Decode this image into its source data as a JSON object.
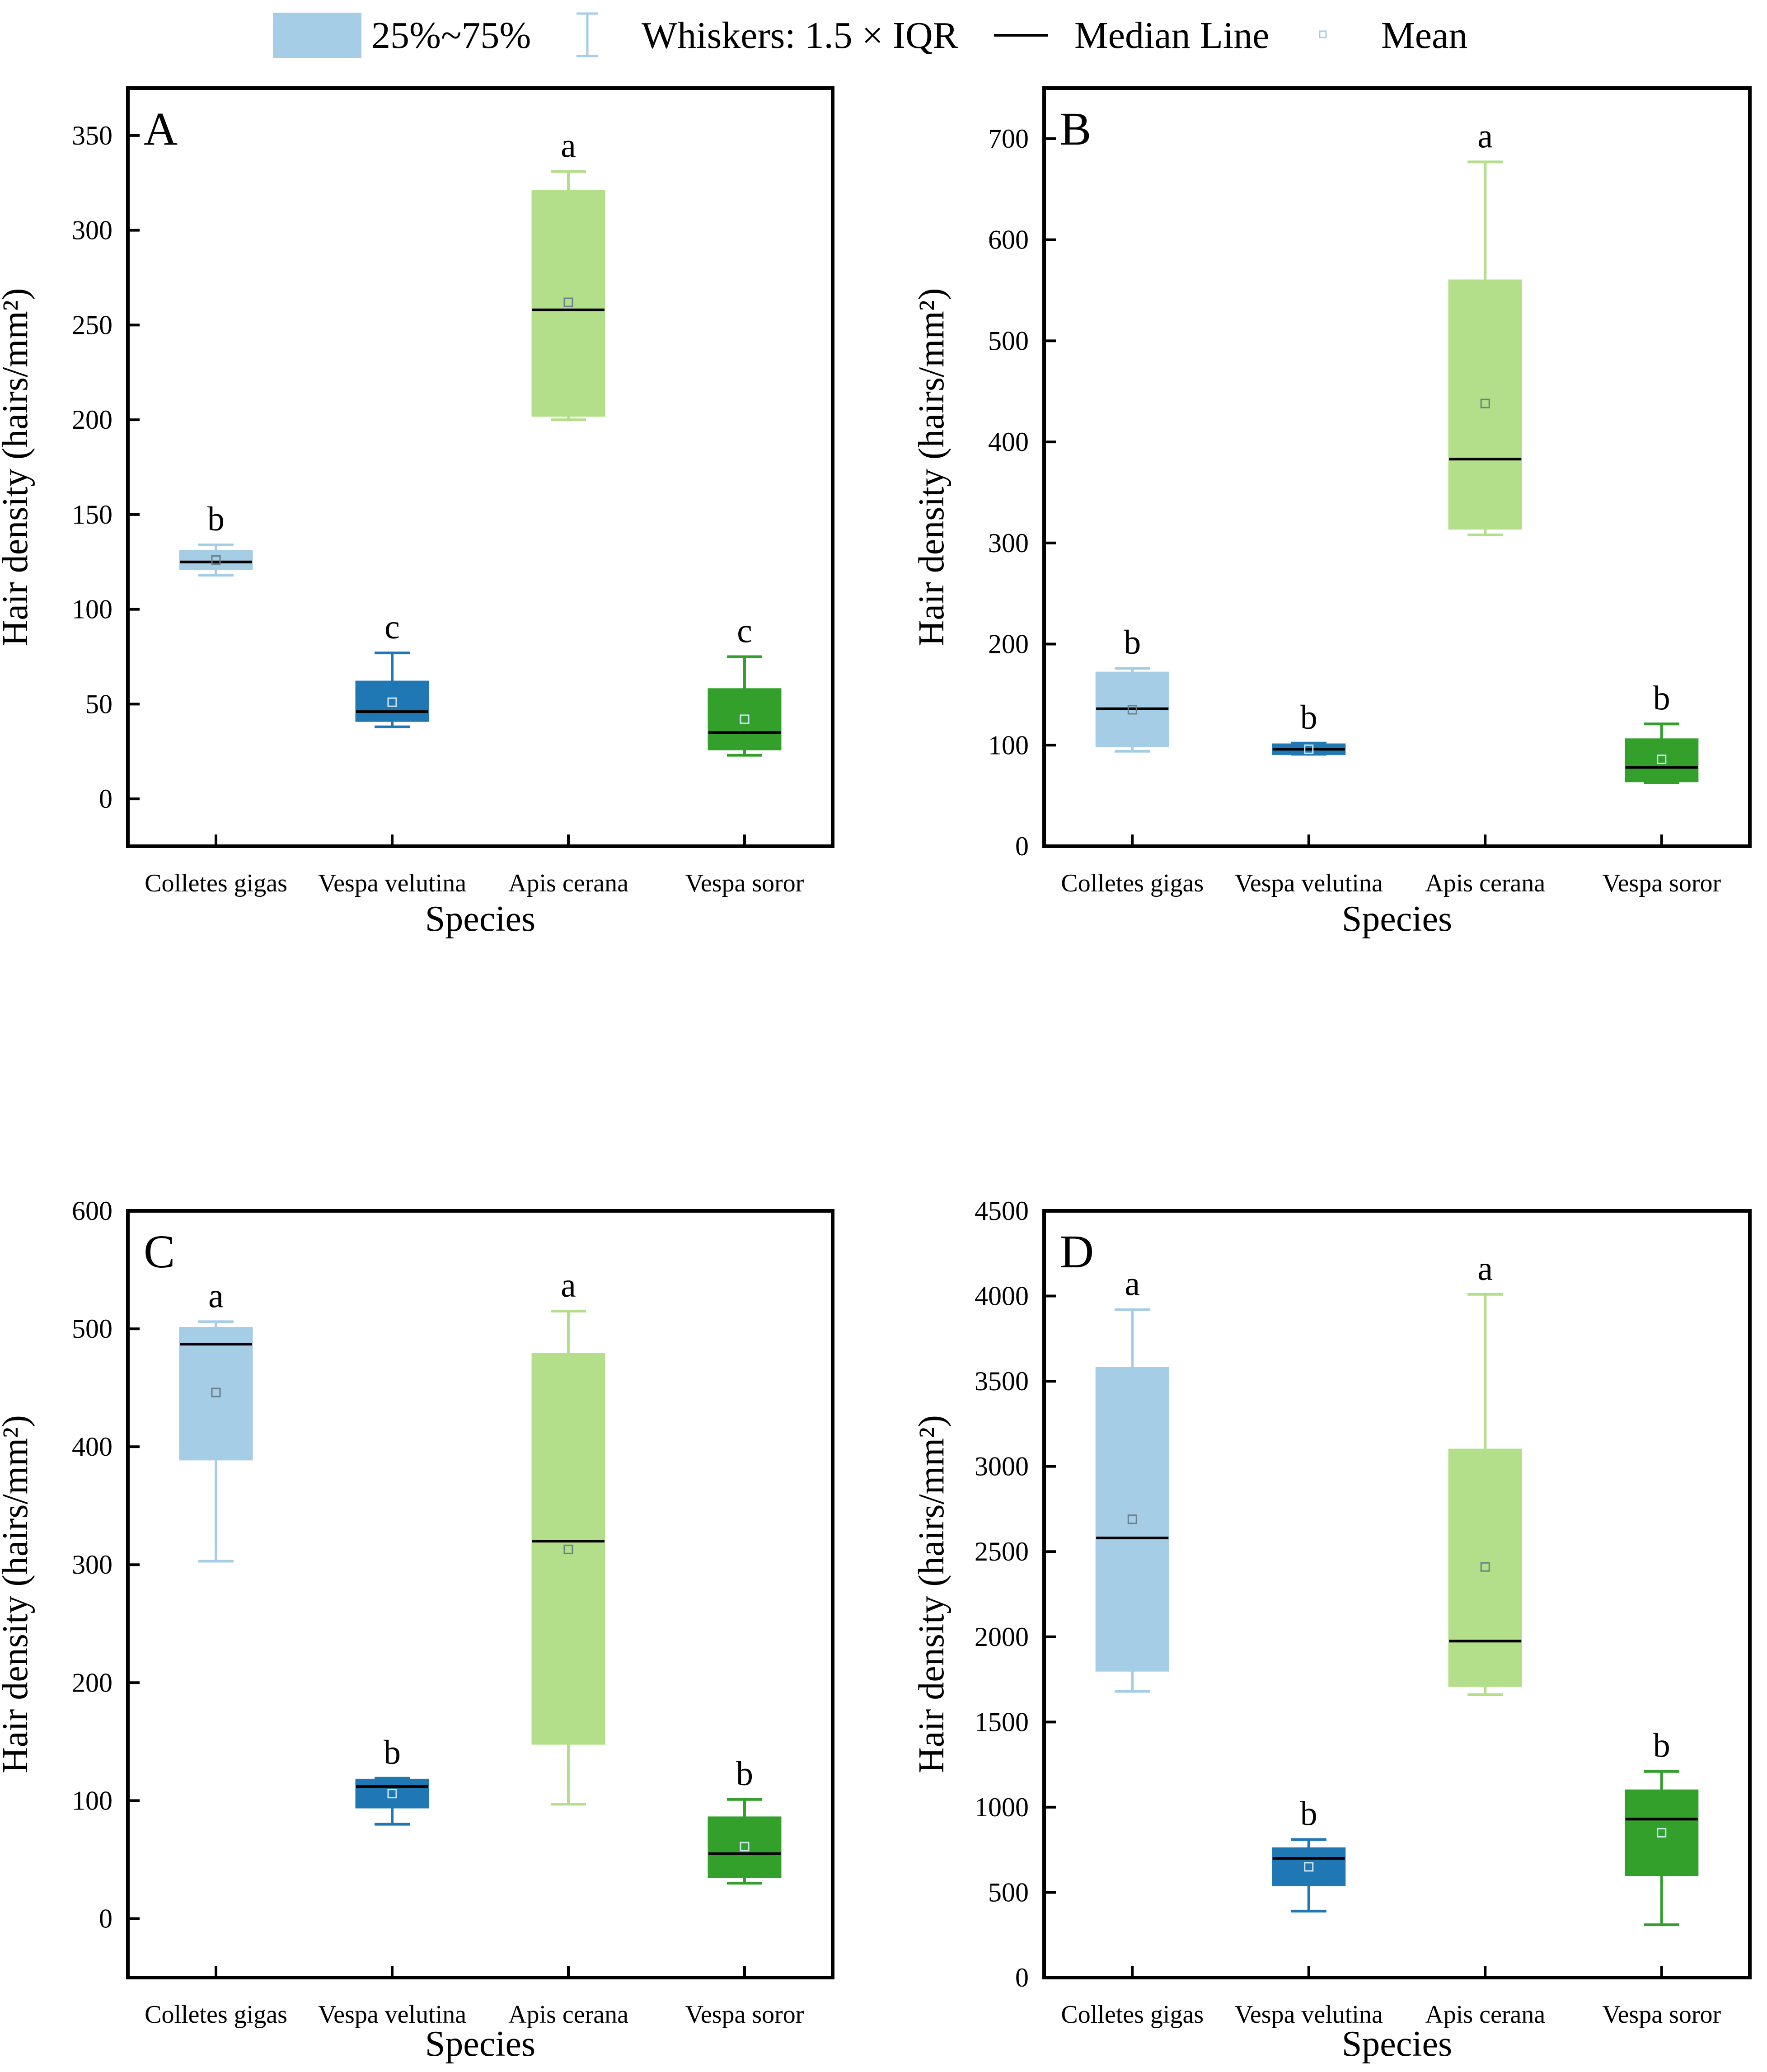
{
  "legend": {
    "box_label": "25%~75%",
    "whisker_label": "Whiskers: 1.5 × IQR",
    "median_label": "Median Line",
    "mean_label": "Mean"
  },
  "colors": {
    "light_blue": "#a6cde6",
    "blue": "#1f78b4",
    "light_green": "#b3de8a",
    "green": "#33a02c"
  },
  "chart_data": [
    {
      "type": "box",
      "panel": "A",
      "xlabel": "Species",
      "ylabel": "Hair density (hairs/mm²)",
      "ylim": [
        -25,
        375
      ],
      "yticks": [
        0,
        50,
        100,
        150,
        200,
        250,
        300,
        350
      ],
      "categories": [
        "Colletes gigas",
        "Vespa velutina",
        "Apis cerana",
        "Vespa soror"
      ],
      "boxes": [
        {
          "whisker_low": 118,
          "q1": 121,
          "median": 125,
          "q3": 131,
          "whisker_high": 134,
          "mean": 126,
          "letter": "b"
        },
        {
          "whisker_low": 38,
          "q1": 41,
          "median": 46,
          "q3": 62,
          "whisker_high": 77,
          "mean": 51,
          "letter": "c"
        },
        {
          "whisker_low": 200,
          "q1": 202,
          "median": 258,
          "q3": 321,
          "whisker_high": 331,
          "mean": 262,
          "letter": "a"
        },
        {
          "whisker_low": 23,
          "q1": 26,
          "median": 35,
          "q3": 58,
          "whisker_high": 75,
          "mean": 42,
          "letter": "c"
        }
      ]
    },
    {
      "type": "box",
      "panel": "B",
      "xlabel": "Species",
      "ylabel": "Hair density (hairs/mm²)",
      "ylim": [
        0,
        750
      ],
      "yticks": [
        0,
        100,
        200,
        300,
        400,
        500,
        600,
        700
      ],
      "categories": [
        "Colletes gigas",
        "Vespa velutina",
        "Apis cerana",
        "Vespa soror"
      ],
      "boxes": [
        {
          "whisker_low": 94,
          "q1": 99,
          "median": 136,
          "q3": 172,
          "whisker_high": 176,
          "mean": 135,
          "letter": "b"
        },
        {
          "whisker_low": 91,
          "q1": 91,
          "median": 96,
          "q3": 101,
          "whisker_high": 102,
          "mean": 96,
          "letter": "b"
        },
        {
          "whisker_low": 308,
          "q1": 314,
          "median": 383,
          "q3": 560,
          "whisker_high": 677,
          "mean": 438,
          "letter": "a"
        },
        {
          "whisker_low": 63,
          "q1": 64,
          "median": 78,
          "q3": 106,
          "whisker_high": 121,
          "mean": 86,
          "letter": "b"
        }
      ]
    },
    {
      "type": "box",
      "panel": "C",
      "xlabel": "Species",
      "ylabel": "Hair density (hairs/mm²)",
      "ylim": [
        -50,
        600
      ],
      "yticks": [
        0,
        100,
        200,
        300,
        400,
        500,
        600
      ],
      "categories": [
        "Colletes gigas",
        "Vespa velutina",
        "Apis cerana",
        "Vespa soror"
      ],
      "boxes": [
        {
          "whisker_low": 303,
          "q1": 389,
          "median": 487,
          "q3": 501,
          "whisker_high": 506,
          "mean": 446,
          "letter": "a"
        },
        {
          "whisker_low": 80,
          "q1": 94,
          "median": 112,
          "q3": 118,
          "whisker_high": 119,
          "mean": 106,
          "letter": "b"
        },
        {
          "whisker_low": 97,
          "q1": 148,
          "median": 320,
          "q3": 479,
          "whisker_high": 515,
          "mean": 313,
          "letter": "a"
        },
        {
          "whisker_low": 30,
          "q1": 35,
          "median": 55,
          "q3": 86,
          "whisker_high": 101,
          "mean": 61,
          "letter": "b"
        }
      ]
    },
    {
      "type": "box",
      "panel": "D",
      "xlabel": "Species",
      "ylabel": "Hair density (hairs/mm²)",
      "ylim": [
        0,
        4500
      ],
      "yticks": [
        0,
        500,
        1000,
        1500,
        2000,
        2500,
        3000,
        3500,
        4000,
        4500
      ],
      "categories": [
        "Colletes gigas",
        "Vespa velutina",
        "Apis cerana",
        "Vespa soror"
      ],
      "boxes": [
        {
          "whisker_low": 1680,
          "q1": 1800,
          "median": 2580,
          "q3": 3580,
          "whisker_high": 3920,
          "mean": 2690,
          "letter": "a"
        },
        {
          "whisker_low": 390,
          "q1": 540,
          "median": 700,
          "q3": 760,
          "whisker_high": 810,
          "mean": 650,
          "letter": "b"
        },
        {
          "whisker_low": 1660,
          "q1": 1710,
          "median": 1975,
          "q3": 3100,
          "whisker_high": 4010,
          "mean": 2410,
          "letter": "a"
        },
        {
          "whisker_low": 310,
          "q1": 600,
          "median": 930,
          "q3": 1100,
          "whisker_high": 1210,
          "mean": 850,
          "letter": "b"
        }
      ]
    }
  ]
}
